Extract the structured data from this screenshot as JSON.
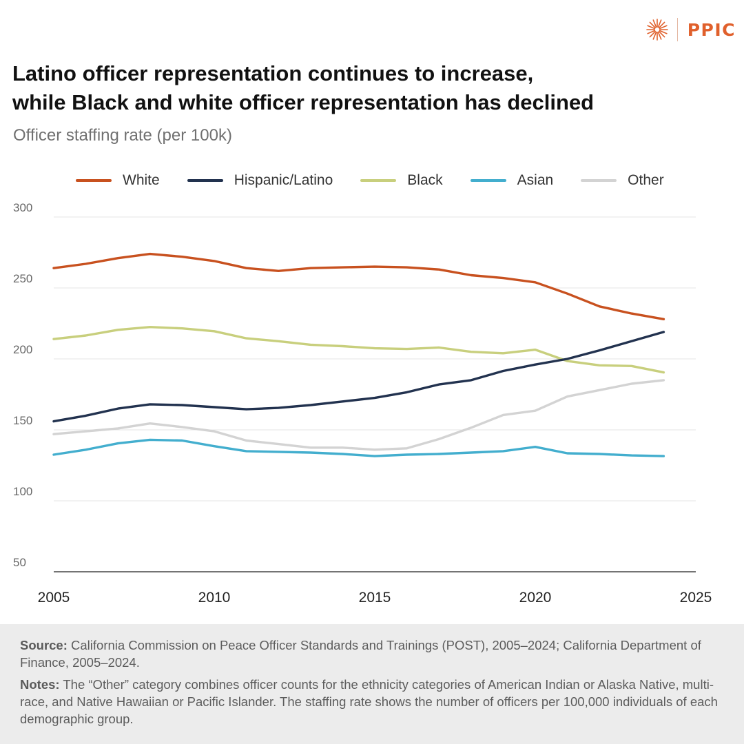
{
  "brand": {
    "name": "PPIC",
    "accent": "#e0602c"
  },
  "header": {
    "title_line1": "Latino officer representation continues to increase,",
    "title_line2": "while Black and white officer representation has declined",
    "subtitle": "Officer staffing rate (per 100k)"
  },
  "chart_data": {
    "type": "line",
    "title": "Latino officer representation continues to increase, while Black and white officer representation has declined",
    "subtitle": "Officer staffing rate (per 100k)",
    "xlabel": "",
    "ylabel": "",
    "x": [
      2005,
      2006,
      2007,
      2008,
      2009,
      2010,
      2011,
      2012,
      2013,
      2014,
      2015,
      2016,
      2017,
      2018,
      2019,
      2020,
      2021,
      2022,
      2023,
      2024
    ],
    "xlim": [
      2005,
      2025
    ],
    "ylim": [
      50,
      300
    ],
    "x_ticks": [
      2005,
      2010,
      2015,
      2020,
      2025
    ],
    "y_ticks": [
      50,
      100,
      150,
      200,
      250,
      300
    ],
    "grid": "horizontal",
    "legend_position": "top",
    "series": [
      {
        "name": "White",
        "color": "#c8511f",
        "values": [
          264,
          267,
          271,
          274,
          272,
          269,
          264,
          262,
          264,
          264.5,
          265,
          264.5,
          263,
          259,
          257,
          254,
          246,
          237,
          232,
          228
        ]
      },
      {
        "name": "Hispanic/Latino",
        "color": "#22324f",
        "values": [
          156,
          160,
          165,
          168,
          167.5,
          166,
          164.5,
          165.5,
          167.5,
          170,
          172.5,
          176.5,
          182,
          185,
          191.5,
          196,
          200,
          206,
          212.5,
          219
        ]
      },
      {
        "name": "Black",
        "color": "#c8cf7d",
        "values": [
          214,
          216.5,
          220.5,
          222.5,
          221.5,
          219.5,
          214.5,
          212.5,
          210,
          209,
          207.5,
          207,
          208,
          205,
          204,
          206.5,
          198.5,
          195.5,
          195,
          190.5
        ]
      },
      {
        "name": "Asian",
        "color": "#43aece",
        "values": [
          132.5,
          136,
          140.5,
          143,
          142.5,
          138.5,
          135,
          134.5,
          134,
          133,
          131.5,
          132.5,
          133,
          134,
          135,
          138,
          133.5,
          133,
          132,
          131.5
        ]
      },
      {
        "name": "Other",
        "color": "#d3d3d3",
        "values": [
          147,
          149,
          151,
          154.5,
          152,
          149,
          142.5,
          140,
          137.5,
          137.5,
          136,
          137,
          143.5,
          151.5,
          160.5,
          163.5,
          173.5,
          178,
          182.5,
          185
        ]
      }
    ]
  },
  "footer": {
    "source_label": "Source:",
    "source_text": "California Commission on Peace Officer Standards and Trainings (POST), 2005–2024; California Department of Finance, 2005–2024.",
    "notes_label": "Notes:",
    "notes_text": "The “Other” category combines officer counts for the ethnicity categories of American Indian or Alaska Native, multi-race, and Native Hawaiian or Pacific Islander. The staffing rate shows the number of officers per 100,000 individuals of each demographic group."
  }
}
